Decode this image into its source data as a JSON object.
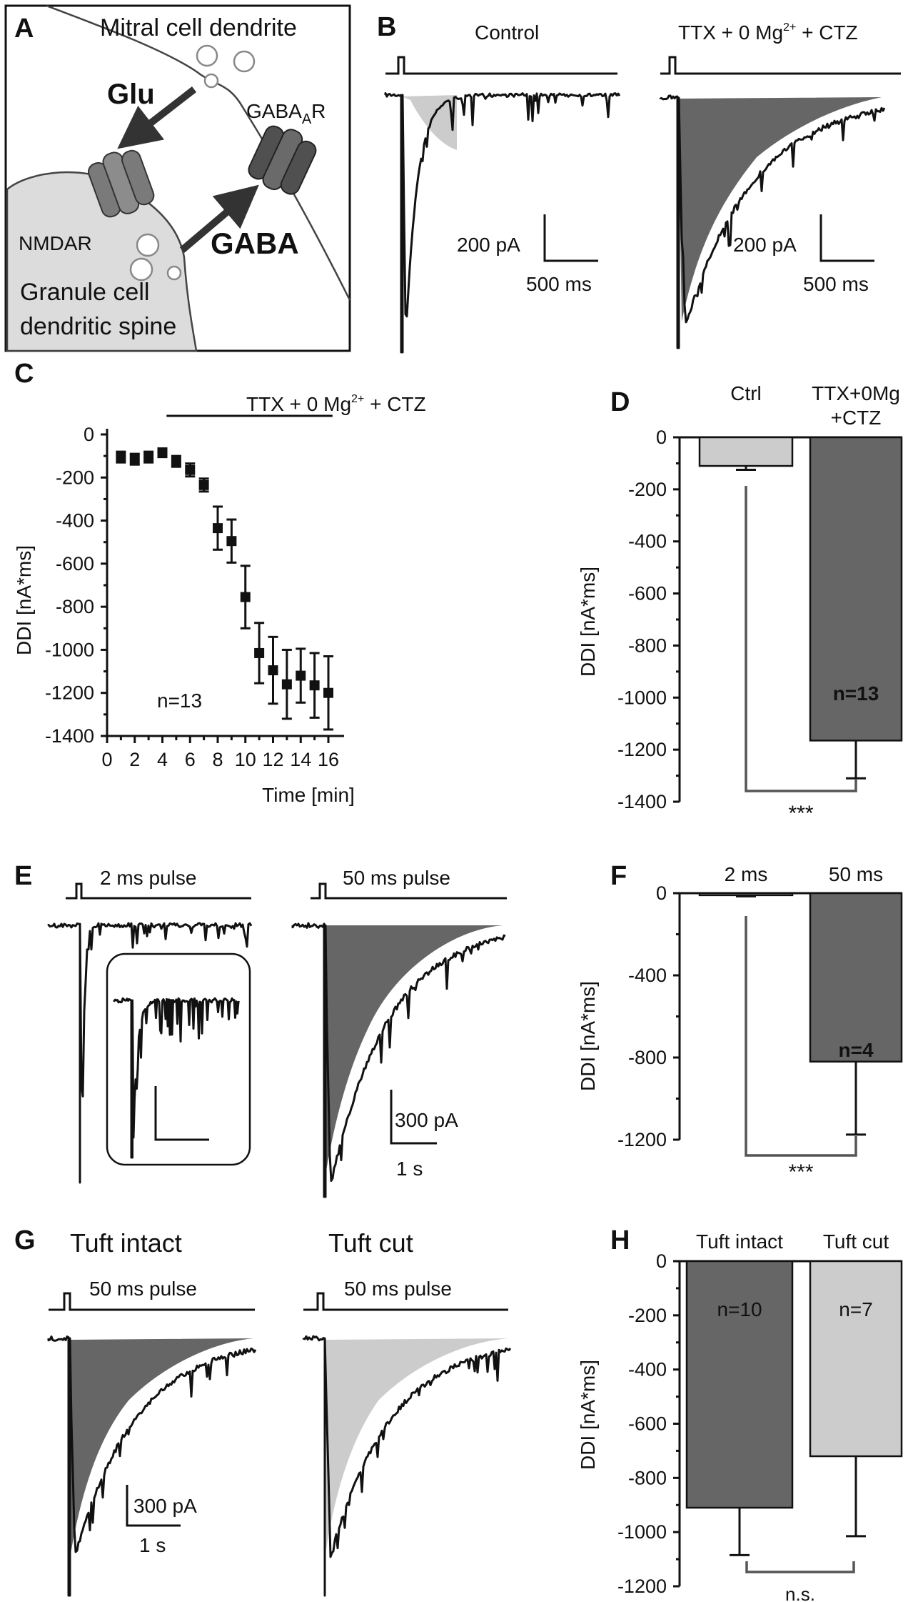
{
  "colors": {
    "dark_fill": "#666666",
    "light_fill": "#cccccc",
    "line": "#111111"
  },
  "panel_a": {
    "letter": "A",
    "mitral_label": "Mitral cell dendrite",
    "glu_label": "Glu",
    "gaba_a_r_label": "GABA",
    "gaba_a_r_sub": "A",
    "gaba_a_r_tail": "R",
    "nmdar_label": "NMDAR",
    "gaba_label": "GABA",
    "granule_label_1": "Granule cell",
    "granule_label_2": "dendritic spine"
  },
  "panel_b": {
    "letter": "B",
    "left_title": "Control",
    "right_title_main": "TTX + 0 Mg",
    "right_title_sup": "2+",
    "right_title_tail": " + CTZ",
    "scale_current": "200 pA",
    "scale_time": "500 ms"
  },
  "panel_e": {
    "letter": "E",
    "left_title": "2 ms pulse",
    "right_title": "50 ms pulse",
    "scale_current": "300 pA",
    "scale_time": "1 s"
  },
  "panel_g": {
    "letter": "G",
    "left_heading": "Tuft intact",
    "right_heading": "Tuft cut",
    "left_pulse": "50 ms pulse",
    "right_pulse": "50 ms pulse",
    "scale_current": "300 pA",
    "scale_time": "1 s"
  },
  "chart_data": [
    {
      "panel": "C",
      "type": "scatter",
      "ylabel": "DDI [nA*ms]",
      "xlabel": "Time [min]",
      "xlim": [
        0,
        16
      ],
      "ylim": [
        -1400,
        0
      ],
      "xticks": [
        0,
        2,
        4,
        6,
        8,
        10,
        12,
        14,
        16
      ],
      "yticks": [
        0,
        -200,
        -400,
        -600,
        -800,
        -1000,
        -1200,
        -1400
      ],
      "bar_label_main": "TTX + 0 Mg",
      "bar_label_sup": "2+",
      "bar_label_tail": " + CTZ",
      "n_label": "n=13",
      "x": [
        1,
        2,
        3,
        4,
        5,
        6,
        7,
        8,
        9,
        10,
        11,
        12,
        13,
        14,
        15,
        16
      ],
      "y": [
        -105,
        -115,
        -105,
        -85,
        -125,
        -165,
        -235,
        -435,
        -495,
        -755,
        -1015,
        -1095,
        -1160,
        -1120,
        -1165,
        -1200
      ],
      "err": [
        25,
        25,
        25,
        20,
        25,
        30,
        30,
        100,
        100,
        145,
        140,
        155,
        160,
        125,
        150,
        170
      ]
    },
    {
      "panel": "D",
      "type": "bar",
      "ylabel": "DDI [nA*ms]",
      "ylim": [
        -1400,
        0
      ],
      "yticks": [
        0,
        -200,
        -400,
        -600,
        -800,
        -1000,
        -1200,
        -1400
      ],
      "categories": [
        "Ctrl",
        "TTX+0Mg +CTZ"
      ],
      "cat_lines": [
        [
          "Ctrl"
        ],
        [
          "TTX+0Mg",
          "+CTZ"
        ]
      ],
      "values": [
        -110,
        -1165
      ],
      "err": [
        15,
        145
      ],
      "n_label": "n=13",
      "significance": "***"
    },
    {
      "panel": "F",
      "type": "bar",
      "ylabel": "DDI [nA*ms]",
      "ylim": [
        -1200,
        0
      ],
      "yticks": [
        0,
        -400,
        -800,
        -1200
      ],
      "categories": [
        "2 ms",
        "50 ms"
      ],
      "values": [
        -10,
        -820
      ],
      "err": [
        5,
        355
      ],
      "n_label": "n=4",
      "significance": "***"
    },
    {
      "panel": "H",
      "type": "bar",
      "ylabel": "DDI [nA*ms]",
      "ylim": [
        -1200,
        0
      ],
      "yticks": [
        0,
        -200,
        -400,
        -600,
        -800,
        -1000,
        -1200
      ],
      "categories": [
        "Tuft intact",
        "Tuft cut"
      ],
      "values": [
        -910,
        -720
      ],
      "err": [
        175,
        295
      ],
      "n_labels": [
        "n=10",
        "n=7"
      ],
      "significance": "n.s."
    }
  ]
}
